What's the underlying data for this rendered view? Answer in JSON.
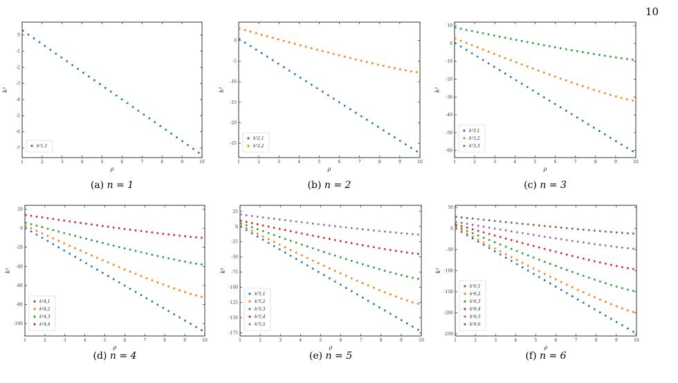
{
  "page_number": "10",
  "chart_data": [
    {
      "type": "scatter",
      "n": 1,
      "caption_label": "(a)",
      "caption_eq": "n = 1",
      "xlabel": "ρ",
      "ylabel": "k²",
      "xlim": [
        1,
        10
      ],
      "ylim": [
        -7.6,
        0.8
      ],
      "xticks": [
        1,
        2,
        3,
        4,
        5,
        6,
        7,
        8,
        9,
        10
      ],
      "yticks": [
        0,
        -1,
        -2,
        -3,
        -4,
        -5,
        -6,
        -7
      ],
      "legend_loc": "lower left",
      "series": [
        {
          "name": "k²1,1",
          "color": "#1f77b4",
          "start": 0.3,
          "end": -7.3
        }
      ]
    },
    {
      "type": "scatter",
      "n": 2,
      "caption_label": "(b)",
      "caption_eq": "n = 2",
      "xlabel": "ρ",
      "ylabel": "k²",
      "xlim": [
        1,
        10
      ],
      "ylim": [
        -28.5,
        4.5
      ],
      "xticks": [
        1,
        2,
        3,
        4,
        5,
        6,
        7,
        8,
        9,
        10
      ],
      "yticks": [
        0,
        -5,
        -10,
        -15,
        -20,
        -25
      ],
      "legend_loc": "lower left",
      "series": [
        {
          "name": "k²2,1",
          "color": "#1f77b4",
          "start": 0.5,
          "end": -27.0
        },
        {
          "name": "k²2,2",
          "color": "#ff7f0e",
          "start": 3.0,
          "end": -7.7
        }
      ]
    },
    {
      "type": "scatter",
      "n": 3,
      "caption_label": "(c)",
      "caption_eq": "n = 3",
      "xlabel": "ρ",
      "ylabel": "k²",
      "xlim": [
        1,
        10
      ],
      "ylim": [
        -64,
        12
      ],
      "xticks": [
        1,
        2,
        3,
        4,
        5,
        6,
        7,
        8,
        9,
        10
      ],
      "yticks": [
        10,
        0,
        -10,
        -20,
        -30,
        -40,
        -50,
        -60
      ],
      "legend_loc": "lower left",
      "series": [
        {
          "name": "k²3,1",
          "color": "#1f77b4",
          "start": 0.5,
          "end": -60.5
        },
        {
          "name": "k²3,2",
          "color": "#ff7f0e",
          "start": 3.0,
          "end": -32.0
        },
        {
          "name": "k²3,3",
          "color": "#2ca02c",
          "start": 9.0,
          "end": -9.0
        }
      ]
    },
    {
      "type": "scatter",
      "n": 4,
      "caption_label": "(d)",
      "caption_eq": "n = 4",
      "xlabel": "ρ",
      "ylabel": "k²",
      "xlim": [
        1,
        10
      ],
      "ylim": [
        -113,
        24
      ],
      "xticks": [
        1,
        2,
        3,
        4,
        5,
        6,
        7,
        8,
        9,
        10
      ],
      "yticks": [
        20,
        0,
        -20,
        -40,
        -60,
        -80,
        -100
      ],
      "legend_loc": "lower left",
      "series": [
        {
          "name": "k²4,1",
          "color": "#1f77b4",
          "start": 0.5,
          "end": -107.0
        },
        {
          "name": "k²4,2",
          "color": "#ff7f0e",
          "start": 3.0,
          "end": -72.0
        },
        {
          "name": "k²4,3",
          "color": "#2ca02c",
          "start": 6.0,
          "end": -38.0
        },
        {
          "name": "k²4,4",
          "color": "#d62728",
          "start": 14.0,
          "end": -10.0
        }
      ]
    },
    {
      "type": "scatter",
      "n": 5,
      "caption_label": "(e)",
      "caption_eq": "n = 5",
      "xlabel": "ρ",
      "ylabel": "k²",
      "xlim": [
        1,
        10
      ],
      "ylim": [
        -180,
        35
      ],
      "xticks": [
        1,
        2,
        3,
        4,
        5,
        6,
        7,
        8,
        9,
        10
      ],
      "yticks": [
        25,
        0,
        -25,
        -50,
        -75,
        -100,
        -125,
        -150,
        -175
      ],
      "legend_loc": "lower left",
      "series": [
        {
          "name": "k²5,1",
          "color": "#1f77b4",
          "start": 0.5,
          "end": -170.0
        },
        {
          "name": "k²5,2",
          "color": "#ff7f0e",
          "start": 3.0,
          "end": -127.0
        },
        {
          "name": "k²5,3",
          "color": "#2ca02c",
          "start": 6.0,
          "end": -86.0
        },
        {
          "name": "k²5,4",
          "color": "#d62728",
          "start": 10.0,
          "end": -45.0
        },
        {
          "name": "k²5,5",
          "color": "#9467bd",
          "start": 20.0,
          "end": -13.0
        }
      ]
    },
    {
      "type": "scatter",
      "n": 6,
      "caption_label": "(f)",
      "caption_eq": "n = 6",
      "xlabel": "ρ",
      "ylabel": "k²",
      "xlim": [
        1,
        10
      ],
      "ylim": [
        -255,
        55
      ],
      "xticks": [
        1,
        2,
        3,
        4,
        5,
        6,
        7,
        8,
        9,
        10
      ],
      "yticks": [
        50,
        0,
        -50,
        -100,
        -150,
        -200,
        -250
      ],
      "legend_loc": "lower left",
      "series": [
        {
          "name": "k²6,1",
          "color": "#1f77b4",
          "start": 0.5,
          "end": -245.0
        },
        {
          "name": "k²6,2",
          "color": "#ff7f0e",
          "start": 3.0,
          "end": -198.0
        },
        {
          "name": "k²6,3",
          "color": "#2ca02c",
          "start": 6.0,
          "end": -148.0
        },
        {
          "name": "k²6,4",
          "color": "#d62728",
          "start": 10.0,
          "end": -96.0
        },
        {
          "name": "k²6,5",
          "color": "#9467bd",
          "start": 16.0,
          "end": -48.0
        },
        {
          "name": "k²6,6",
          "color": "#8c564b",
          "start": 28.0,
          "end": -12.0
        }
      ]
    }
  ]
}
